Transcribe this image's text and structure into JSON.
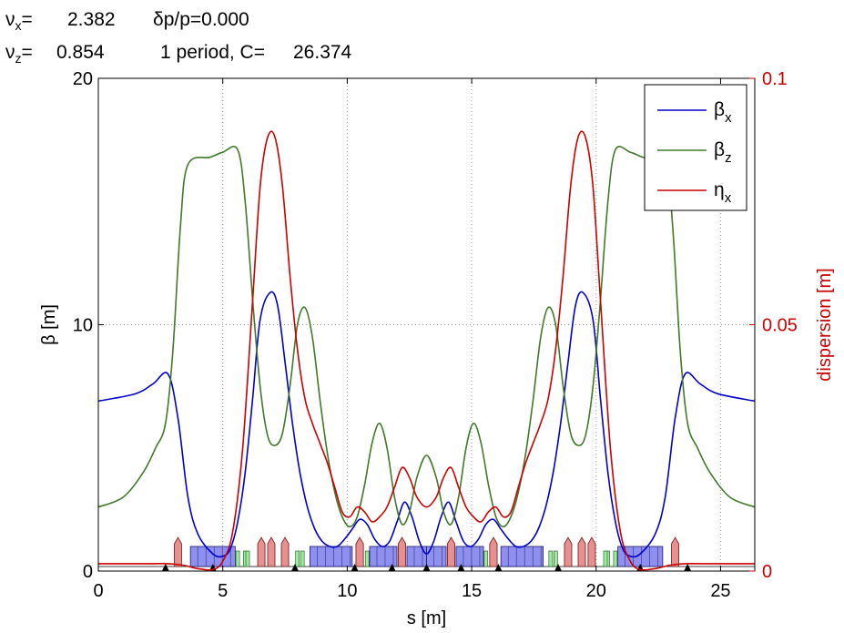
{
  "header": {
    "nux_label": "ν",
    "nux_sub": "x",
    "nux_eq": "=",
    "nux_value": "2.382",
    "dpp": "δp/p=0.000",
    "nuz_label": "ν",
    "nuz_sub": "z",
    "nuz_eq": "=",
    "nuz_value": "0.854",
    "period": "1 period, C=",
    "circumference": "26.374"
  },
  "chart_data": {
    "type": "line",
    "xlabel": "s [m]",
    "ylabel": "β [m]",
    "y2label": "dispersion [m]",
    "xlim": [
      0,
      26.374
    ],
    "ylim": [
      0,
      20
    ],
    "y2lim": [
      0,
      0.1
    ],
    "xticks": [
      0,
      5,
      10,
      15,
      20,
      25
    ],
    "yticks": [
      0,
      10,
      20
    ],
    "y2ticks": [
      0,
      0.05,
      0.1
    ],
    "y2ticklabels": [
      "0",
      "0.05",
      "0.1"
    ],
    "grid": true,
    "legend_position": "top-right",
    "colors": {
      "beta_x": "#0000cc",
      "beta_z": "#3f7a28",
      "eta_x": "#cc0000",
      "axis2": "#cc0000"
    },
    "series": [
      {
        "name": "βx",
        "sub": "x",
        "base": "β",
        "key": "beta_x",
        "axis": "left",
        "x": [
          0,
          1.5,
          2.2,
          2.8,
          3.2,
          3.6,
          4.0,
          4.6,
          5.0,
          5.3,
          5.6,
          5.9,
          6.2,
          6.5,
          6.9,
          7.2,
          7.5,
          7.8,
          8.1,
          8.4,
          8.7,
          9.0,
          9.3,
          9.6,
          9.9,
          10.2,
          10.5,
          10.8,
          11.1,
          11.4,
          11.7,
          12.0,
          12.3,
          12.6,
          12.9,
          13.187
        ],
        "values": [
          6.9,
          7.2,
          7.6,
          8.0,
          6.2,
          3.0,
          1.5,
          0.7,
          0.6,
          0.9,
          2.0,
          4.0,
          7.0,
          10.2,
          11.3,
          10.8,
          8.5,
          6.0,
          4.0,
          2.6,
          1.7,
          1.2,
          1.0,
          1.0,
          1.3,
          1.7,
          2.1,
          1.9,
          1.3,
          1.0,
          1.2,
          2.0,
          2.8,
          2.2,
          1.2,
          0.7
        ]
      },
      {
        "name": "βz",
        "sub": "z",
        "base": "β",
        "key": "beta_z",
        "axis": "left",
        "x": [
          0,
          1.0,
          1.8,
          2.3,
          2.7,
          3.0,
          3.3,
          3.6,
          4.5,
          5.0,
          5.6,
          5.9,
          6.2,
          6.5,
          6.8,
          7.1,
          7.4,
          7.7,
          8.0,
          8.3,
          8.6,
          8.9,
          9.2,
          9.5,
          9.8,
          10.1,
          10.4,
          10.7,
          11.0,
          11.3,
          11.6,
          11.9,
          12.2,
          12.5,
          12.8,
          13.187
        ],
        "values": [
          2.6,
          3.0,
          4.0,
          5.0,
          6.0,
          9.0,
          14.0,
          16.5,
          16.8,
          17.0,
          17.1,
          15.0,
          11.0,
          7.5,
          5.5,
          5.1,
          5.6,
          7.5,
          10.0,
          10.7,
          9.5,
          7.0,
          4.8,
          3.2,
          2.2,
          1.8,
          2.2,
          3.5,
          5.2,
          6.0,
          5.0,
          3.0,
          1.9,
          2.4,
          3.8,
          4.7
        ]
      },
      {
        "name": "ηx",
        "sub": "x",
        "base": "η",
        "key": "eta_x",
        "axis": "right",
        "x": [
          0,
          2.0,
          2.8,
          3.4,
          4.0,
          4.6,
          5.0,
          5.4,
          5.8,
          6.2,
          6.5,
          6.8,
          7.1,
          7.4,
          7.7,
          8.0,
          8.3,
          8.6,
          8.9,
          9.2,
          9.5,
          9.8,
          10.1,
          10.4,
          10.7,
          11.0,
          11.3,
          11.6,
          11.9,
          12.2,
          12.5,
          12.8,
          13.187
        ],
        "values": [
          0.0015,
          0.0015,
          0.0015,
          0.0012,
          0.0005,
          0.0003,
          0.002,
          0.008,
          0.025,
          0.055,
          0.078,
          0.088,
          0.088,
          0.078,
          0.06,
          0.045,
          0.035,
          0.03,
          0.026,
          0.022,
          0.017,
          0.012,
          0.011,
          0.013,
          0.012,
          0.01,
          0.011,
          0.013,
          0.017,
          0.021,
          0.019,
          0.015,
          0.013
        ]
      }
    ]
  },
  "lattice": {
    "mirror_s": 13.187,
    "quads": [
      {
        "s": 3.2,
        "w": 0.25
      },
      {
        "s": 6.55,
        "w": 0.25
      },
      {
        "s": 6.95,
        "w": 0.25
      },
      {
        "s": 7.5,
        "w": 0.25
      },
      {
        "s": 10.5,
        "w": 0.3
      },
      {
        "s": 12.2,
        "w": 0.3
      }
    ],
    "bends": [
      {
        "s": 3.7,
        "e": 5.5
      },
      {
        "s": 8.5,
        "e": 10.2
      },
      {
        "s": 10.9,
        "e": 12.0
      },
      {
        "s": 12.4,
        "e": 13.187
      }
    ],
    "sextupoles": [
      {
        "s": 5.6
      },
      {
        "s": 5.9
      },
      {
        "s": 6.0
      },
      {
        "s": 8.0
      },
      {
        "s": 8.2
      },
      {
        "s": 10.8
      }
    ],
    "markers": [
      {
        "s": 2.7
      },
      {
        "s": 4.6
      },
      {
        "s": 7.9
      },
      {
        "s": 10.3
      },
      {
        "s": 11.8
      },
      {
        "s": 13.187
      }
    ]
  }
}
